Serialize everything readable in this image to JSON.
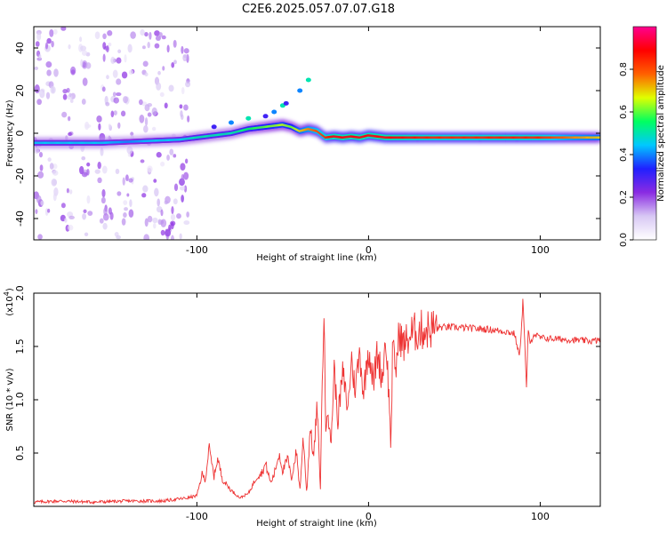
{
  "title": "C2E6.2025.057.07.07.G18",
  "chart_data": [
    {
      "type": "heatmap",
      "name": "spectrogram",
      "xlabel": "Height of straight line (km)",
      "ylabel": "Frequency (Hz)",
      "xlim": [
        -195,
        135
      ],
      "ylim": [
        -50,
        50
      ],
      "xticks": [
        -100,
        0,
        100
      ],
      "xtick_labels": [
        "-100",
        "0",
        "100"
      ],
      "yticks": [
        -40,
        -20,
        0,
        20,
        40
      ],
      "ytick_labels": [
        "-40",
        "-20",
        "0",
        "20",
        "40"
      ],
      "colorbar": {
        "label": "Normalized spectral amplitude",
        "range": [
          0.0,
          1.0
        ],
        "ticks": [
          0.0,
          0.2,
          0.4,
          0.6,
          0.8
        ],
        "tick_labels": [
          "0.0",
          "0.2",
          "0.4",
          "0.6",
          "0.8"
        ],
        "colormap": [
          "#ffffff",
          "#d8c8f4",
          "#8a2be2",
          "#2020ff",
          "#00c8ff",
          "#00ff60",
          "#e0ff00",
          "#ff6000",
          "#ff0000",
          "#ff0090"
        ]
      },
      "ridge": {
        "x": [
          -195,
          -175,
          -155,
          -140,
          -125,
          -110,
          -100,
          -90,
          -80,
          -70,
          -60,
          -50,
          -45,
          -40,
          -35,
          -30,
          -25,
          -20,
          -15,
          -10,
          -5,
          0,
          10,
          20,
          40,
          60,
          80,
          100,
          120,
          135
        ],
        "y": [
          -4.5,
          -4.5,
          -4.5,
          -4.0,
          -3.5,
          -3.0,
          -2.0,
          -1.0,
          0.0,
          2.0,
          3.0,
          4.0,
          3.0,
          1.0,
          2.0,
          1.0,
          -2.0,
          -1.5,
          -2.0,
          -1.5,
          -2.0,
          -1.0,
          -2.0,
          -2.0,
          -2.0,
          -2.0,
          -2.0,
          -2.0,
          -2.0,
          -2.0
        ],
        "amplitude": [
          0.45,
          0.45,
          0.45,
          0.4,
          0.45,
          0.45,
          0.5,
          0.5,
          0.5,
          0.55,
          0.6,
          0.65,
          0.6,
          0.7,
          0.75,
          0.8,
          0.85,
          0.9,
          0.9,
          0.9,
          0.9,
          0.9,
          0.9,
          0.88,
          0.85,
          0.85,
          0.86,
          0.85,
          0.75,
          0.7
        ]
      },
      "secondary_track": {
        "x": [
          -90,
          -80,
          -70,
          -60,
          -55,
          -50,
          -48,
          -40,
          -35
        ],
        "y": [
          3,
          5,
          7,
          8,
          10,
          13,
          14,
          20,
          25
        ]
      }
    },
    {
      "type": "line",
      "name": "snr",
      "xlabel": "Height of straight line (km)",
      "ylabel": "SNR (10 * v/v)",
      "y_multiplier_label": "(x10",
      "y_multiplier_exponent": "4",
      "y_multiplier_close": ")",
      "xlim": [
        -195,
        135
      ],
      "ylim": [
        0.0,
        20000
      ],
      "xticks": [
        -100,
        0,
        100
      ],
      "xtick_labels": [
        "-100",
        "0",
        "100"
      ],
      "yticks": [
        5000,
        10000,
        15000,
        20000
      ],
      "ytick_labels": [
        "0.5",
        "1.0",
        "1.5",
        "2.0"
      ],
      "color": "#ee3333",
      "series": [
        {
          "name": "SNR",
          "x": [
            -195,
            -180,
            -160,
            -140,
            -120,
            -105,
            -100,
            -97,
            -95,
            -93,
            -90,
            -88,
            -85,
            -80,
            -75,
            -70,
            -65,
            -62,
            -60,
            -57,
            -55,
            -52,
            -50,
            -47,
            -45,
            -42,
            -40,
            -38,
            -36,
            -34,
            -32,
            -30,
            -28,
            -27,
            -26,
            -25,
            -24,
            -22,
            -20,
            -18,
            -15,
            -12,
            -10,
            -8,
            -5,
            -3,
            0,
            3,
            5,
            8,
            10,
            12,
            13,
            14,
            16,
            18,
            20,
            25,
            30,
            40,
            50,
            60,
            70,
            80,
            85,
            88,
            90,
            92,
            93,
            94,
            96,
            100,
            110,
            120,
            130,
            135
          ],
          "y": [
            400,
            500,
            400,
            500,
            500,
            800,
            1000,
            3000,
            2500,
            5500,
            2800,
            4500,
            2500,
            1500,
            800,
            1200,
            2800,
            3200,
            4000,
            2200,
            3000,
            5000,
            3300,
            4500,
            2500,
            5200,
            1500,
            6500,
            1200,
            7500,
            4500,
            9500,
            1500,
            12000,
            18500,
            7000,
            10000,
            5500,
            13000,
            8000,
            12500,
            9000,
            14000,
            11000,
            14500,
            10500,
            15000,
            11500,
            14500,
            12000,
            16000,
            10000,
            5500,
            14500,
            13000,
            16500,
            15000,
            16200,
            16500,
            16800,
            16800,
            16700,
            16600,
            16400,
            16200,
            14000,
            19500,
            11000,
            16800,
            15000,
            16200,
            15800,
            15700,
            15600,
            15500,
            15600
          ]
        }
      ]
    }
  ]
}
